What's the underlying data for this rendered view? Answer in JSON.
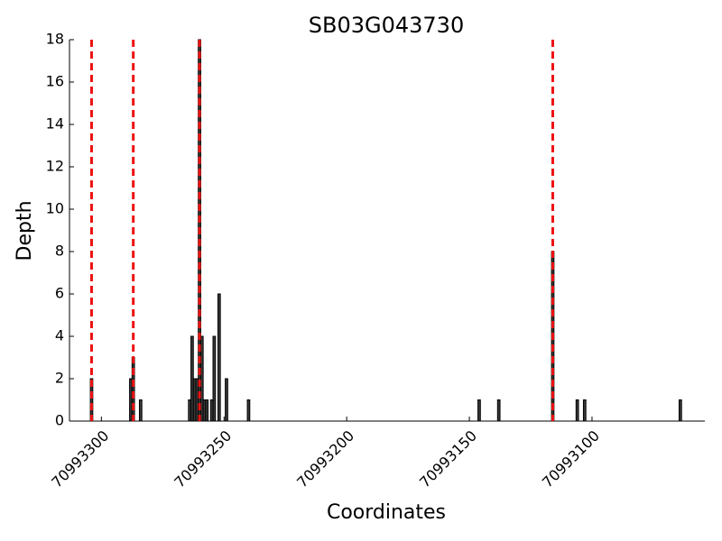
{
  "chart_data": {
    "type": "bar",
    "title": "SB03G043730",
    "x_label": "Coordinates",
    "y_label": "Depth",
    "x": [
      70993304,
      70993288,
      70993287,
      70993284,
      70993264,
      70993263,
      70993262,
      70993261,
      70993260,
      70993259,
      70993258,
      70993257,
      70993255,
      70993254,
      70993252,
      70993249,
      70993240,
      70993146,
      70993138,
      70993116,
      70993106,
      70993103,
      70993064
    ],
    "values": [
      2,
      2,
      3,
      1,
      1,
      4,
      2,
      2,
      18,
      4,
      1,
      1,
      1,
      4,
      6,
      2,
      1,
      1,
      1,
      8,
      1,
      1,
      1
    ],
    "color": "#3a3a3a",
    "vlines": [
      70993304,
      70993287,
      70993260,
      70993116
    ],
    "vline_color": "#ee1111",
    "xlim": [
      70993313,
      70993054
    ],
    "xticks": [
      70993300,
      70993250,
      70993200,
      70993150,
      70993100
    ],
    "ylim": [
      0,
      18
    ],
    "yticks": [
      0,
      2,
      4,
      6,
      8,
      10,
      12,
      14,
      16,
      18
    ]
  }
}
